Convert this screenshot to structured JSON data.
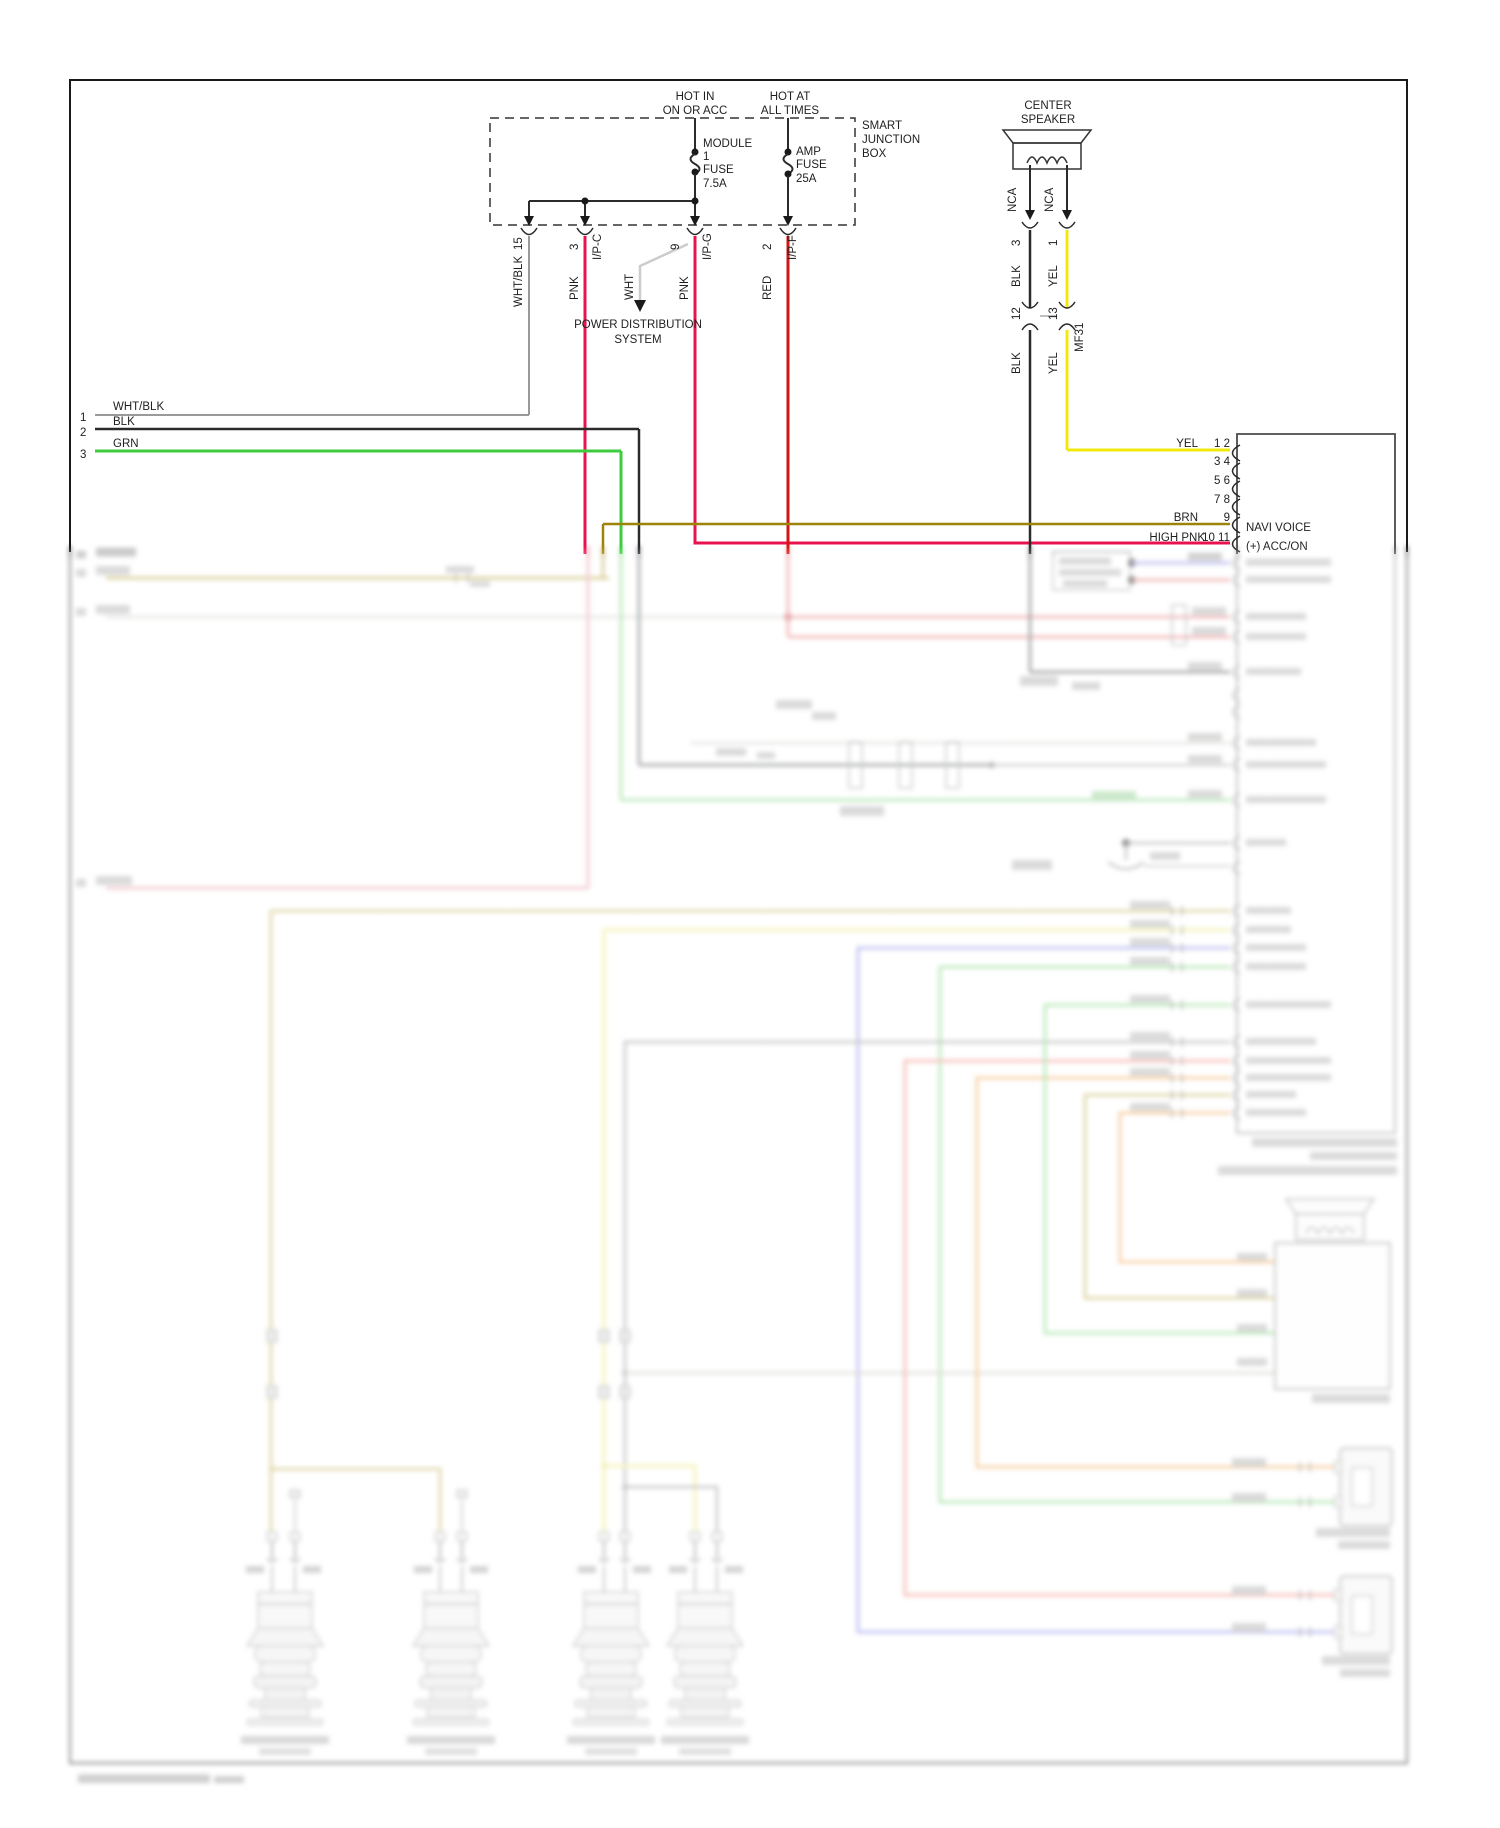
{
  "colors": {
    "frame": "#1a1a1a",
    "pnk": "#e8124f",
    "red": "#d21616",
    "yel": "#f2e90c",
    "grn": "#3ecc3e",
    "brn": "#9c8409",
    "blk": "#2b2b2b",
    "wht": "#cccccc",
    "whtblk": "#9a9a9a",
    "b_tan": "#d0c27c",
    "b_paleyel": "#f1ee9e",
    "b_blue": "#9b9ce9",
    "b_green": "#92dc92",
    "b_salmon": "#f09a92",
    "b_orange": "#f4b470",
    "b_rose": "#ecaab6",
    "b_red": "#ea8f8f",
    "b_ltgray": "#c9c9c2",
    "b_midgray": "#9f9f9f",
    "b_dkgray": "#606468",
    "b_khaki": "#c4b25a",
    "b_blob": "#b5b5b5"
  },
  "junction_box": {
    "hot_in1": "HOT IN",
    "hot_in2": "ON OR ACC",
    "hot_at1": "HOT AT",
    "hot_at2": "ALL TIMES",
    "sjb1": "SMART",
    "sjb2": "JUNCTION",
    "sjb3": "BOX",
    "mf1": "MODULE",
    "mf2": "1",
    "mf3": "FUSE",
    "mf4": "7.5A",
    "af1": "AMP",
    "af2": "FUSE",
    "af3": "25A"
  },
  "power_dist": {
    "l1": "POWER DISTRIBUTION",
    "l2": "SYSTEM"
  },
  "sjb_outputs": {
    "p15": "15",
    "wht_blk": "WHT/BLK",
    "p3": "3",
    "pnk_c": "PNK",
    "ipc": "I/P-C",
    "p9": "9",
    "wht": "WHT",
    "pnk_g": "PNK",
    "ipg": "I/P-G",
    "p2": "2",
    "red": "RED",
    "ipf": "I/P-F"
  },
  "center_speaker": {
    "t1": "CENTER",
    "t2": "SPEAKER",
    "nca1": "NCA",
    "nca2": "NCA",
    "p3": "3",
    "p1": "1",
    "blk1": "BLK",
    "yel1": "YEL",
    "p12": "12",
    "p13": "13",
    "mf31": "MF31",
    "blk2": "BLK",
    "yel2": "YEL"
  },
  "left_rows": {
    "n1": "1",
    "w1": "WHT/BLK",
    "n2": "2",
    "w2": "BLK",
    "n3": "3",
    "w3": "GRN"
  },
  "head_unit": {
    "yel": "YEL",
    "p12": "1 2",
    "p34": "3 4",
    "p56": "5 6",
    "p78": "7 8",
    "brn": "BRN",
    "p9": "9",
    "highpnk": "HIGH PNK",
    "p1011": "10 11",
    "navi": "NAVI VOICE",
    "acc": "(+) ACC/ON"
  }
}
